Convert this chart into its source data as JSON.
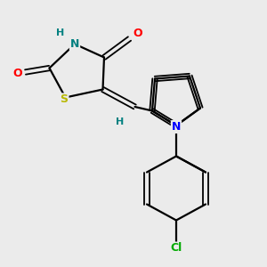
{
  "bg_color": "#ebebeb",
  "bond_color": "#000000",
  "atom_colors": {
    "S": "#b8b800",
    "N_thiazolidine": "#008080",
    "N_pyrrole": "#0000ff",
    "O": "#ff0000",
    "Cl": "#00aa00",
    "H": "#008080",
    "C": "#000000"
  },
  "figsize": [
    3.0,
    3.0
  ],
  "dpi": 100
}
